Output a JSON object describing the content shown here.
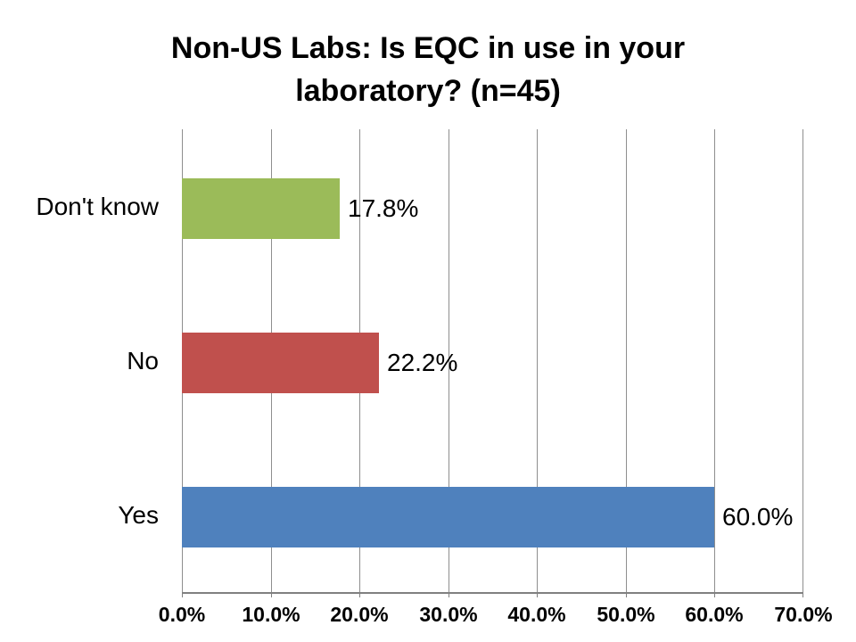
{
  "title": "Non-US Labs: Is EQC in use in your laboratory? (n=45)",
  "chart_data": {
    "type": "bar",
    "orientation": "horizontal",
    "title": "Non-US Labs: Is EQC in use in your laboratory? (n=45)",
    "categories": [
      "Don't know",
      "No",
      "Yes"
    ],
    "values": [
      17.8,
      22.2,
      60.0
    ],
    "value_labels": [
      "17.8%",
      "22.2%",
      "60.0%"
    ],
    "bar_colors": [
      "#9BBB59",
      "#C0504D",
      "#4F81BD"
    ],
    "xlabel": "",
    "ylabel": "",
    "xlim": [
      0,
      70
    ],
    "x_tick_values": [
      0,
      10,
      20,
      30,
      40,
      50,
      60,
      70
    ],
    "x_tick_labels": [
      "0.0%",
      "10.0%",
      "20.0%",
      "30.0%",
      "40.0%",
      "50.0%",
      "60.0%",
      "70.0%"
    ],
    "grid": "vertical-only",
    "legend": "none",
    "gridline_color": "#8e8e8e",
    "axis_color": "#808080",
    "text_color": "#000000",
    "background_color": "#ffffff"
  }
}
